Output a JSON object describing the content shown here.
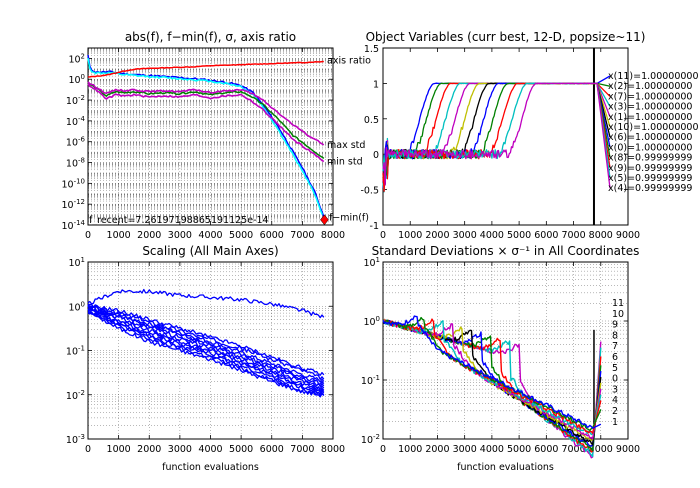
{
  "chart_data": [
    {
      "type": "line",
      "title": "abs(f), f−min(f), σ, axis ratio",
      "xscale": "linear",
      "yscale": "log",
      "xlim": [
        0,
        8000
      ],
      "ylim_exp": [
        -14,
        3
      ],
      "xticks": [
        0,
        1000,
        2000,
        3000,
        4000,
        5000,
        6000,
        7000,
        8000
      ],
      "yticks_exp": [
        -14,
        -12,
        -10,
        -8,
        -6,
        -4,
        -2,
        0,
        2
      ],
      "grid": true,
      "annotations": {
        "f_recent": "f_recent=7.26197198865191125e-14",
        "axis_ratio": "axis ratio",
        "max_std": "max std",
        "min_std": "min std",
        "fmin": "f−min(f)"
      },
      "series": [
        {
          "role": "abs(f)",
          "color": "#0000ff",
          "x": [
            0,
            60,
            120,
            250,
            500,
            800,
            1100,
            1500,
            2000,
            2500,
            3000,
            3500,
            4000,
            4500,
            5000,
            5400,
            5800,
            6200,
            6600,
            7000,
            7400,
            7700
          ],
          "y_exp": [
            2.3,
            1.2,
            0.9,
            0.7,
            0.7,
            0.7,
            0.55,
            0.45,
            0.35,
            0.25,
            0.15,
            0.05,
            -0.1,
            -0.3,
            -0.6,
            -1.3,
            -2.8,
            -4.5,
            -6.5,
            -8.5,
            -10.8,
            -13.2
          ]
        },
        {
          "role": "f−min(f)",
          "color": "#00ffff",
          "x": [
            0,
            60,
            120,
            250,
            500,
            800,
            1100,
            1500,
            2000,
            2500,
            3000,
            3500,
            4000,
            4500,
            5000,
            5400,
            5800,
            6200,
            6600,
            7000,
            7400,
            7650
          ],
          "y_exp": [
            2.0,
            1.0,
            0.8,
            0.6,
            0.6,
            0.6,
            0.45,
            0.35,
            0.25,
            0.15,
            0.05,
            -0.05,
            -0.2,
            -0.4,
            -0.7,
            -1.5,
            -3.0,
            -4.8,
            -6.8,
            -8.8,
            -11.0,
            -13.0
          ]
        },
        {
          "role": "axis ratio",
          "color": "#ff0000",
          "x": [
            0,
            300,
            600,
            900,
            1200,
            1500,
            2000,
            2500,
            3000,
            3500,
            4000,
            4500,
            5000,
            5500,
            6000,
            6500,
            7000,
            7700
          ],
          "y_exp": [
            0.2,
            0.3,
            0.4,
            0.6,
            0.8,
            0.95,
            1.05,
            1.1,
            1.15,
            1.2,
            1.3,
            1.35,
            1.4,
            1.45,
            1.5,
            1.55,
            1.6,
            1.7
          ]
        },
        {
          "role": "sigma",
          "color": "#008000",
          "x": [
            0,
            300,
            600,
            900,
            1200,
            1500,
            2000,
            2500,
            3000,
            3500,
            4000,
            4500,
            5000,
            5300,
            5700,
            6200,
            6700,
            7200,
            7700
          ],
          "y_exp": [
            -0.4,
            -0.9,
            -1.6,
            -1.2,
            -1.3,
            -1.2,
            -1.4,
            -1.3,
            -1.4,
            -1.2,
            -1.5,
            -1.3,
            -1.2,
            -1.6,
            -2.4,
            -3.8,
            -5.4,
            -6.5,
            -7.6
          ]
        },
        {
          "role": "max std",
          "color": "#bf00bf",
          "x": [
            0,
            300,
            600,
            900,
            1200,
            1500,
            2000,
            2500,
            3000,
            3500,
            4000,
            4500,
            5000,
            5300,
            5700,
            6200,
            6700,
            7200,
            7700
          ],
          "y_exp": [
            -0.3,
            -0.8,
            -1.4,
            -1.0,
            -1.1,
            -1.0,
            -1.2,
            -1.1,
            -1.2,
            -1.0,
            -1.3,
            -1.1,
            -1.0,
            -1.3,
            -2.0,
            -3.2,
            -4.4,
            -5.4,
            -6.3
          ]
        },
        {
          "role": "min std",
          "color": "#bf00bf",
          "x": [
            0,
            300,
            600,
            900,
            1200,
            1500,
            2000,
            2500,
            3000,
            3500,
            4000,
            4500,
            5000,
            5300,
            5700,
            6200,
            6700,
            7200,
            7700
          ],
          "y_exp": [
            -0.5,
            -1.1,
            -1.9,
            -1.5,
            -1.6,
            -1.5,
            -1.7,
            -1.6,
            -1.7,
            -1.5,
            -1.8,
            -1.6,
            -1.5,
            -2.0,
            -2.9,
            -4.3,
            -5.8,
            -6.8,
            -7.9
          ]
        }
      ],
      "markers": [
        {
          "x": 7720,
          "y_exp": -13.5,
          "color": "#ff0000"
        }
      ]
    },
    {
      "type": "line",
      "title": "Object Variables (curr best, 12-D, popsize~11)",
      "xscale": "linear",
      "yscale": "linear",
      "xlim": [
        0,
        9000
      ],
      "ylim": [
        -1,
        1.5
      ],
      "xticks": [
        0,
        1000,
        2000,
        3000,
        4000,
        5000,
        6000,
        7000,
        8000,
        9000
      ],
      "yticks": [
        -1,
        -0.5,
        0,
        0.5,
        1,
        1.5
      ],
      "vline": 7750,
      "grid": false,
      "series": [
        {
          "name": "x(11)=1.00000000",
          "color": "#0000ff",
          "t": 1300
        },
        {
          "name": "x(2)=1.00000000",
          "color": "#008000",
          "t": 1550
        },
        {
          "name": "x(7)=1.00000000",
          "color": "#ff0000",
          "t": 1900
        },
        {
          "name": "x(3)=1.00000000",
          "color": "#00bfbf",
          "t": 2250
        },
        {
          "name": "x(1)=1.00000000",
          "color": "#bf00bf",
          "t": 2600
        },
        {
          "name": "x(10)=1.00000000",
          "color": "#bfbf00",
          "t": 2950
        },
        {
          "name": "x(6)=1.00000000",
          "color": "#000000",
          "t": 3300
        },
        {
          "name": "x(0)=1.00000000",
          "color": "#0000ff",
          "t": 3650
        },
        {
          "name": "x(8)=0.99999999",
          "color": "#008000",
          "t": 4000
        },
        {
          "name": "x(9)=0.99999999",
          "color": "#ff0000",
          "t": 4350
        },
        {
          "name": "x(5)=0.99999999",
          "color": "#00bfbf",
          "t": 4700
        },
        {
          "name": "x(4)=0.99999999",
          "color": "#bf00bf",
          "t": 5050
        }
      ]
    },
    {
      "type": "line",
      "title": "Scaling (All Main Axes)",
      "xlabel": "function evaluations",
      "xscale": "linear",
      "yscale": "log",
      "xlim": [
        0,
        8000
      ],
      "ylim_exp": [
        -3,
        1
      ],
      "xticks": [
        0,
        1000,
        2000,
        3000,
        4000,
        5000,
        6000,
        7000,
        8000
      ],
      "yticks_exp": [
        -3,
        -2,
        -1,
        0,
        1
      ],
      "grid": true,
      "color": "#0000ff",
      "x": [
        0,
        1000,
        2000,
        3000,
        4000,
        5000,
        6000,
        7000,
        7700
      ],
      "series": [
        {
          "y_exp": [
            0.05,
            0.35,
            0.33,
            0.25,
            0.2,
            0.15,
            0.05,
            -0.1,
            -0.25
          ]
        },
        {
          "y_exp": [
            0.02,
            -0.1,
            -0.3,
            -0.5,
            -0.7,
            -0.9,
            -1.15,
            -1.4,
            -1.55
          ]
        },
        {
          "y_exp": [
            0.0,
            -0.15,
            -0.35,
            -0.55,
            -0.75,
            -0.95,
            -1.2,
            -1.45,
            -1.65
          ]
        },
        {
          "y_exp": [
            0.0,
            -0.2,
            -0.4,
            -0.6,
            -0.8,
            -1.05,
            -1.3,
            -1.55,
            -1.7
          ]
        },
        {
          "y_exp": [
            -0.02,
            -0.22,
            -0.45,
            -0.65,
            -0.85,
            -1.1,
            -1.35,
            -1.6,
            -1.75
          ]
        },
        {
          "y_exp": [
            -0.03,
            -0.25,
            -0.5,
            -0.7,
            -0.9,
            -1.15,
            -1.4,
            -1.65,
            -1.8
          ]
        },
        {
          "y_exp": [
            -0.04,
            -0.3,
            -0.55,
            -0.75,
            -0.95,
            -1.2,
            -1.45,
            -1.7,
            -1.85
          ]
        },
        {
          "y_exp": [
            -0.05,
            -0.35,
            -0.6,
            -0.8,
            -1.0,
            -1.25,
            -1.5,
            -1.75,
            -1.9
          ]
        },
        {
          "y_exp": [
            -0.06,
            -0.38,
            -0.65,
            -0.85,
            -1.05,
            -1.3,
            -1.55,
            -1.8,
            -1.93
          ]
        },
        {
          "y_exp": [
            -0.08,
            -0.42,
            -0.7,
            -0.9,
            -1.1,
            -1.35,
            -1.6,
            -1.85,
            -1.96
          ]
        },
        {
          "y_exp": [
            -0.1,
            -0.45,
            -0.75,
            -0.95,
            -1.15,
            -1.4,
            -1.65,
            -1.9,
            -2.0
          ]
        },
        {
          "y_exp": [
            -0.12,
            -0.5,
            -0.8,
            -1.0,
            -1.2,
            -1.45,
            -1.7,
            -1.93,
            -2.02
          ]
        }
      ]
    },
    {
      "type": "line",
      "title": "Standard Deviations  × σ⁻¹ in All Coordinates",
      "xlabel": "function evaluations",
      "xscale": "linear",
      "yscale": "log",
      "xlim": [
        0,
        9000
      ],
      "ylim_exp": [
        -2,
        1
      ],
      "xticks": [
        0,
        1000,
        2000,
        3000,
        4000,
        5000,
        6000,
        7000,
        8000,
        9000
      ],
      "yticks_exp": [
        -2,
        -1,
        0,
        1
      ],
      "grid": true,
      "vline": 7750,
      "series": [
        {
          "name": "11",
          "color": "#bf00bf",
          "t": 5050,
          "end_exp": -0.35
        },
        {
          "name": "10",
          "color": "#00bfbf",
          "t": 4700,
          "end_exp": -0.45
        },
        {
          "name": "9",
          "color": "#ff0000",
          "t": 4350,
          "end_exp": -0.6
        },
        {
          "name": "8",
          "color": "#008000",
          "t": 4000,
          "end_exp": -0.75
        },
        {
          "name": "7",
          "color": "#0000ff",
          "t": 3650,
          "end_exp": -0.85
        },
        {
          "name": "6",
          "color": "#000000",
          "t": 3300,
          "end_exp": -0.95
        },
        {
          "name": "5",
          "color": "#bfbf00",
          "t": 2950,
          "end_exp": -1.05
        },
        {
          "name": "0",
          "color": "#bf00bf",
          "t": 2600,
          "end_exp": -1.15
        },
        {
          "name": "3",
          "color": "#00bfbf",
          "t": 2250,
          "end_exp": -1.25
        },
        {
          "name": "4",
          "color": "#ff0000",
          "t": 1900,
          "end_exp": -1.35
        },
        {
          "name": "2",
          "color": "#008000",
          "t": 1550,
          "end_exp": -1.5
        },
        {
          "name": "1",
          "color": "#0000ff",
          "t": 1300,
          "end_exp": -1.75
        }
      ]
    }
  ]
}
